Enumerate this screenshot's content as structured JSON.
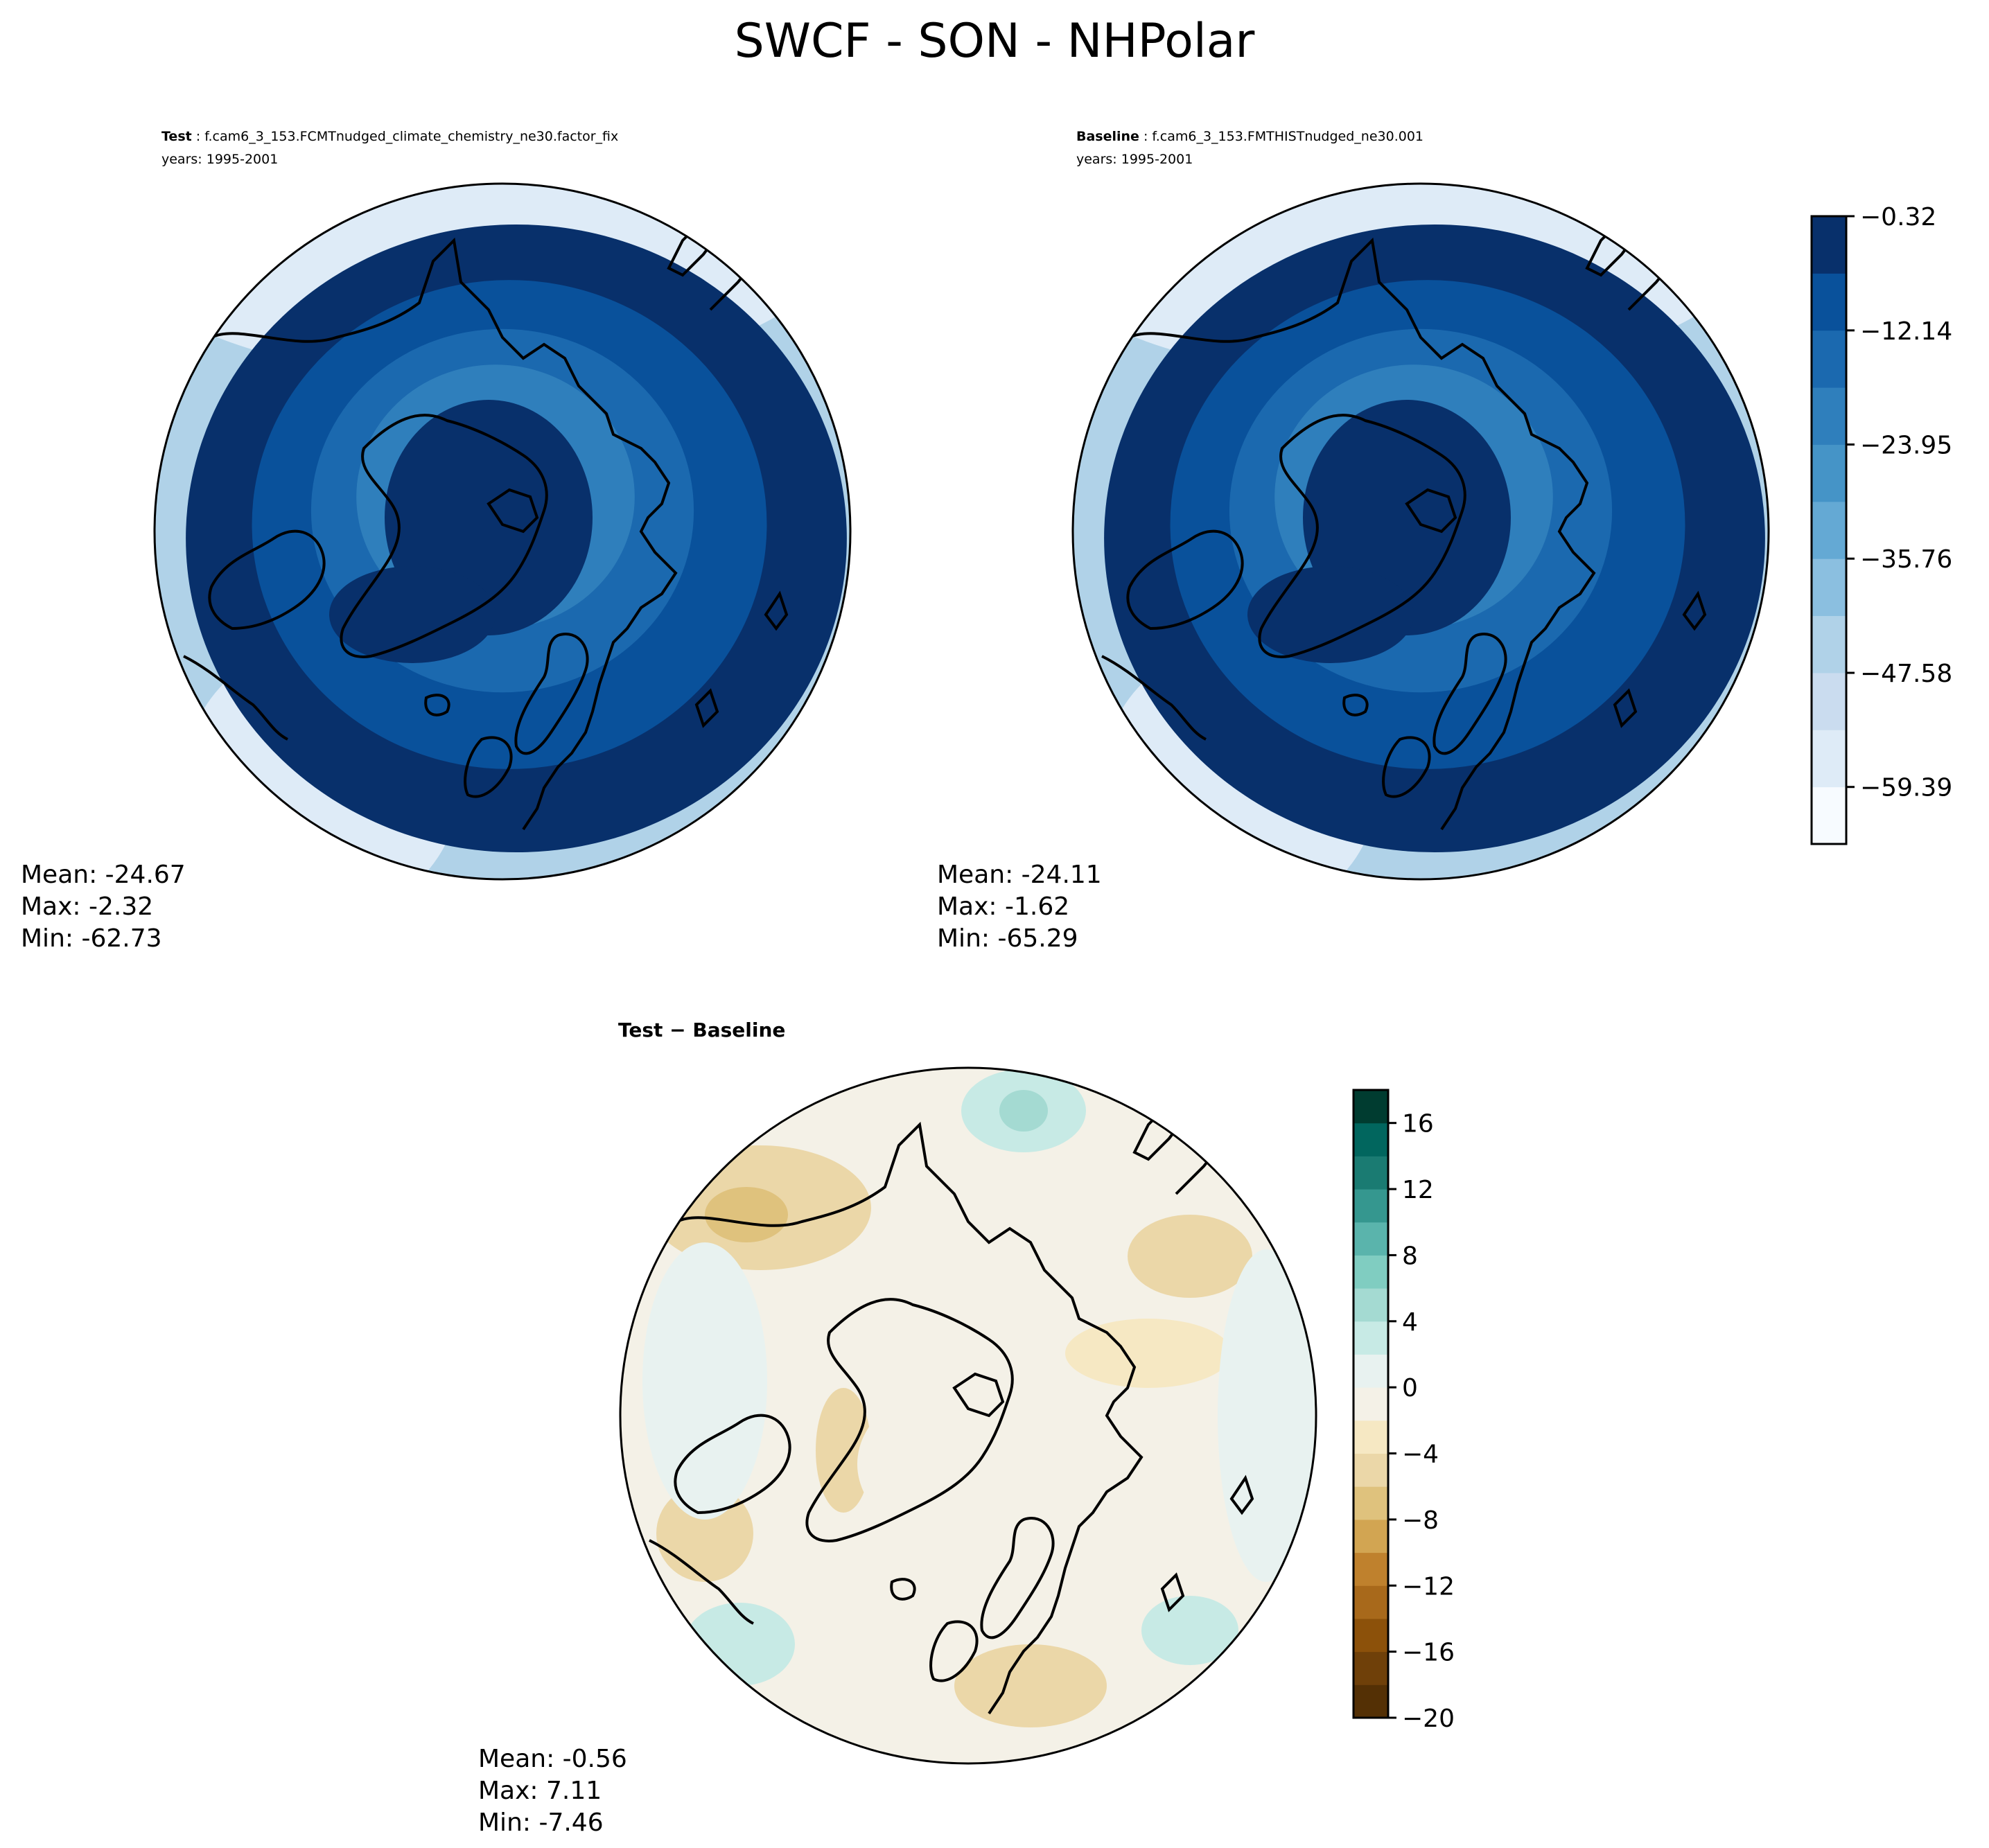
{
  "figure": {
    "title": "SWCF - SON - NHPolar"
  },
  "panels": {
    "test": {
      "label_bold": "Test",
      "label_rest": " : f.cam6_3_153.FCMTnudged_climate_chemistry_ne30.factor_fix",
      "years": "years: 1995-2001",
      "stats": {
        "mean": "Mean: -24.67",
        "max": "Max: -2.32",
        "min": "Min: -62.73"
      }
    },
    "baseline": {
      "label_bold": "Baseline",
      "label_rest": " : f.cam6_3_153.FMTHISTnudged_ne30.001",
      "years": "years: 1995-2001",
      "stats": {
        "mean": "Mean: -24.11",
        "max": "Max: -1.62",
        "min": "Min: -65.29"
      }
    },
    "difference": {
      "label": "Test − Baseline",
      "stats": {
        "mean": "Mean: -0.56",
        "max": "Max:  7.11",
        "min": "Min: -7.46"
      }
    }
  },
  "colorbars": {
    "field": {
      "cmap": [
        "#f7fbff",
        "#deebf7",
        "#cadcef",
        "#b0d2e8",
        "#8bbfe0",
        "#64a9d4",
        "#4594c7",
        "#2f7fbc",
        "#1b69af",
        "#09519b",
        "#08306b"
      ],
      "ticks": [
        "−0.32",
        "−12.14",
        "−23.95",
        "−35.76",
        "−47.58",
        "−59.39"
      ],
      "tick_values": [
        -0.32,
        -12.14,
        -23.95,
        -35.76,
        -47.58,
        -59.39
      ],
      "range": [
        -65.29,
        -0.32
      ]
    },
    "diff": {
      "cmap": [
        "#543005",
        "#6f4009",
        "#8c510a",
        "#a8691b",
        "#bf812d",
        "#d2a552",
        "#dfc27d",
        "#ebd7a8",
        "#f6e8c3",
        "#f4f1e7",
        "#e8f2f0",
        "#c7eae5",
        "#a4dad2",
        "#80cdc1",
        "#5ab4ac",
        "#35978f",
        "#1a7b72",
        "#01665e",
        "#003c30"
      ],
      "ticks": [
        "16",
        "12",
        "8",
        "4",
        "0",
        "−4",
        "−8",
        "−12",
        "−16",
        "−20"
      ],
      "tick_values": [
        16,
        12,
        8,
        4,
        0,
        -4,
        -8,
        -12,
        -16,
        -20
      ],
      "range": [
        -20,
        18
      ]
    }
  },
  "fields": {
    "test": [
      {
        "r": 0.95,
        "c": 10
      },
      {
        "r": 0.74,
        "c": 9
      },
      {
        "r": 0.55,
        "c": 8
      },
      {
        "r": 0.4,
        "c": 7
      },
      {
        "r": 0.25,
        "c": 6
      },
      {
        "r": 0.12,
        "c": 5
      }
    ],
    "baseline": [
      {
        "r": 0.95,
        "c": 10
      },
      {
        "r": 0.74,
        "c": 9
      },
      {
        "r": 0.55,
        "c": 8
      },
      {
        "r": 0.4,
        "c": 7
      },
      {
        "r": 0.25,
        "c": 6
      },
      {
        "r": 0.12,
        "c": 5
      }
    ]
  }
}
